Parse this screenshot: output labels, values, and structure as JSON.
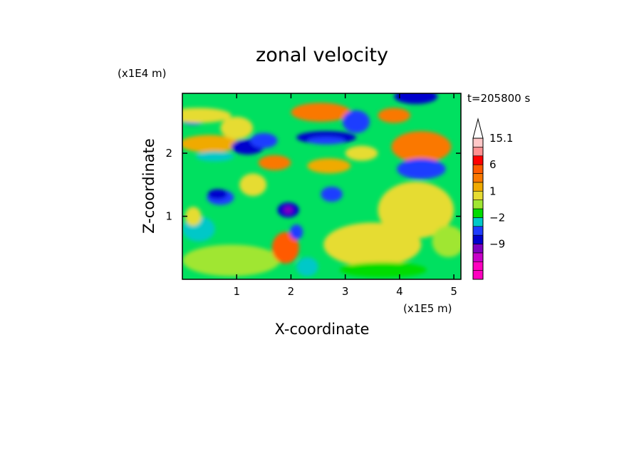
{
  "chart_data": {
    "type": "heatmap",
    "title": "zonal velocity",
    "xlabel": "X-coordinate",
    "ylabel": "Z-coordinate",
    "x_unit": "(x1E5 m)",
    "y_unit": "(x1E4 m)",
    "time_label": "t=205800 s",
    "xlim": [
      0,
      5.13
    ],
    "ylim": [
      0,
      2.95
    ],
    "x_ticks": [
      {
        "v": 1,
        "label": "1"
      },
      {
        "v": 2,
        "label": "2"
      },
      {
        "v": 3,
        "label": "3"
      },
      {
        "v": 4,
        "label": "4"
      },
      {
        "v": 5,
        "label": "5"
      }
    ],
    "y_ticks": [
      {
        "v": 1,
        "label": "1"
      },
      {
        "v": 2,
        "label": "2"
      }
    ],
    "colorbar": {
      "levels": [
        {
          "color": "#ff00bf"
        },
        {
          "color": "#ff00bf"
        },
        {
          "color": "#c800c8"
        },
        {
          "color": "#7f00bf"
        },
        {
          "color": "#0000cd"
        },
        {
          "color": "#1e3cff"
        },
        {
          "color": "#00c8c8"
        },
        {
          "color": "#00dc00"
        },
        {
          "color": "#a0e632"
        },
        {
          "color": "#e6dc32"
        },
        {
          "color": "#f0aa00"
        },
        {
          "color": "#fa7800"
        },
        {
          "color": "#ff5a00"
        },
        {
          "color": "#ff0000"
        },
        {
          "color": "#ff9090"
        },
        {
          "color": "#ffc8c8"
        }
      ],
      "labels": [
        {
          "level_index": 15,
          "text": "15.1"
        },
        {
          "level_index": 12,
          "text": "6"
        },
        {
          "level_index": 9,
          "text": "1"
        },
        {
          "level_index": 6,
          "text": "−2"
        },
        {
          "level_index": 3,
          "text": "−9"
        }
      ],
      "extend_max": true
    },
    "background_color": "#00e060",
    "features": [
      {
        "x": 0.2,
        "z": 2.55,
        "rx": 0.25,
        "rz": 0.1,
        "color": "#1e3cff"
      },
      {
        "x": 0.3,
        "z": 2.6,
        "rx": 0.6,
        "rz": 0.12,
        "color": "#e6dc32"
      },
      {
        "x": 0.5,
        "z": 2.15,
        "rx": 0.55,
        "rz": 0.14,
        "color": "#f0aa00"
      },
      {
        "x": 0.6,
        "z": 1.95,
        "rx": 0.35,
        "rz": 0.08,
        "color": "#00c8c8"
      },
      {
        "x": 0.7,
        "z": 1.3,
        "rx": 0.25,
        "rz": 0.12,
        "color": "#1e3cff"
      },
      {
        "x": 0.65,
        "z": 1.35,
        "rx": 0.18,
        "rz": 0.08,
        "color": "#0000cd"
      },
      {
        "x": 0.3,
        "z": 0.8,
        "rx": 0.3,
        "rz": 0.2,
        "color": "#00c8c8"
      },
      {
        "x": 0.9,
        "z": 0.3,
        "rx": 0.9,
        "rz": 0.25,
        "color": "#a0e632"
      },
      {
        "x": 1.0,
        "z": 2.4,
        "rx": 0.3,
        "rz": 0.18,
        "color": "#e6dc32"
      },
      {
        "x": 1.2,
        "z": 2.1,
        "rx": 0.3,
        "rz": 0.12,
        "color": "#0000cd"
      },
      {
        "x": 1.5,
        "z": 2.2,
        "rx": 0.25,
        "rz": 0.12,
        "color": "#1e3cff"
      },
      {
        "x": 1.7,
        "z": 1.85,
        "rx": 0.3,
        "rz": 0.12,
        "color": "#fa7800"
      },
      {
        "x": 1.95,
        "z": 1.1,
        "rx": 0.2,
        "rz": 0.12,
        "color": "#0000cd"
      },
      {
        "x": 1.95,
        "z": 1.1,
        "rx": 0.08,
        "rz": 0.06,
        "color": "#7f00bf"
      },
      {
        "x": 1.9,
        "z": 0.5,
        "rx": 0.25,
        "rz": 0.25,
        "color": "#ff5a00"
      },
      {
        "x": 2.1,
        "z": 0.75,
        "rx": 0.12,
        "rz": 0.12,
        "color": "#1e3cff"
      },
      {
        "x": 2.3,
        "z": 0.2,
        "rx": 0.2,
        "rz": 0.15,
        "color": "#00c8c8"
      },
      {
        "x": 2.55,
        "z": 2.65,
        "rx": 0.55,
        "rz": 0.15,
        "color": "#fa7800"
      },
      {
        "x": 2.65,
        "z": 2.25,
        "rx": 0.55,
        "rz": 0.1,
        "color": "#0000cd"
      },
      {
        "x": 2.65,
        "z": 2.2,
        "rx": 0.35,
        "rz": 0.06,
        "color": "#1e3cff"
      },
      {
        "x": 2.7,
        "z": 1.8,
        "rx": 0.4,
        "rz": 0.12,
        "color": "#f0aa00"
      },
      {
        "x": 2.75,
        "z": 1.35,
        "rx": 0.2,
        "rz": 0.12,
        "color": "#1e3cff"
      },
      {
        "x": 3.2,
        "z": 2.5,
        "rx": 0.25,
        "rz": 0.18,
        "color": "#1e3cff"
      },
      {
        "x": 3.3,
        "z": 2.0,
        "rx": 0.3,
        "rz": 0.12,
        "color": "#e6dc32"
      },
      {
        "x": 4.4,
        "z": 2.1,
        "rx": 0.55,
        "rz": 0.25,
        "color": "#fa7800"
      },
      {
        "x": 4.4,
        "z": 1.75,
        "rx": 0.35,
        "rz": 0.1,
        "color": "#0000cd"
      },
      {
        "x": 4.4,
        "z": 1.75,
        "rx": 0.45,
        "rz": 0.16,
        "color": "#1e3cff"
      },
      {
        "x": 4.3,
        "z": 2.9,
        "rx": 0.4,
        "rz": 0.12,
        "color": "#0000cd"
      },
      {
        "x": 3.9,
        "z": 2.6,
        "rx": 0.3,
        "rz": 0.12,
        "color": "#fa7800"
      },
      {
        "x": 4.3,
        "z": 1.1,
        "rx": 0.7,
        "rz": 0.45,
        "color": "#e6dc32"
      },
      {
        "x": 3.5,
        "z": 0.55,
        "rx": 0.9,
        "rz": 0.35,
        "color": "#e6dc32"
      },
      {
        "x": 4.9,
        "z": 0.6,
        "rx": 0.3,
        "rz": 0.25,
        "color": "#a0e632"
      },
      {
        "x": 3.7,
        "z": 0.15,
        "rx": 0.8,
        "rz": 0.12,
        "color": "#00dc00"
      },
      {
        "x": 1.3,
        "z": 1.5,
        "rx": 0.25,
        "rz": 0.18,
        "color": "#e6dc32"
      },
      {
        "x": 0.2,
        "z": 1.0,
        "rx": 0.15,
        "rz": 0.15,
        "color": "#e6dc32"
      }
    ]
  }
}
